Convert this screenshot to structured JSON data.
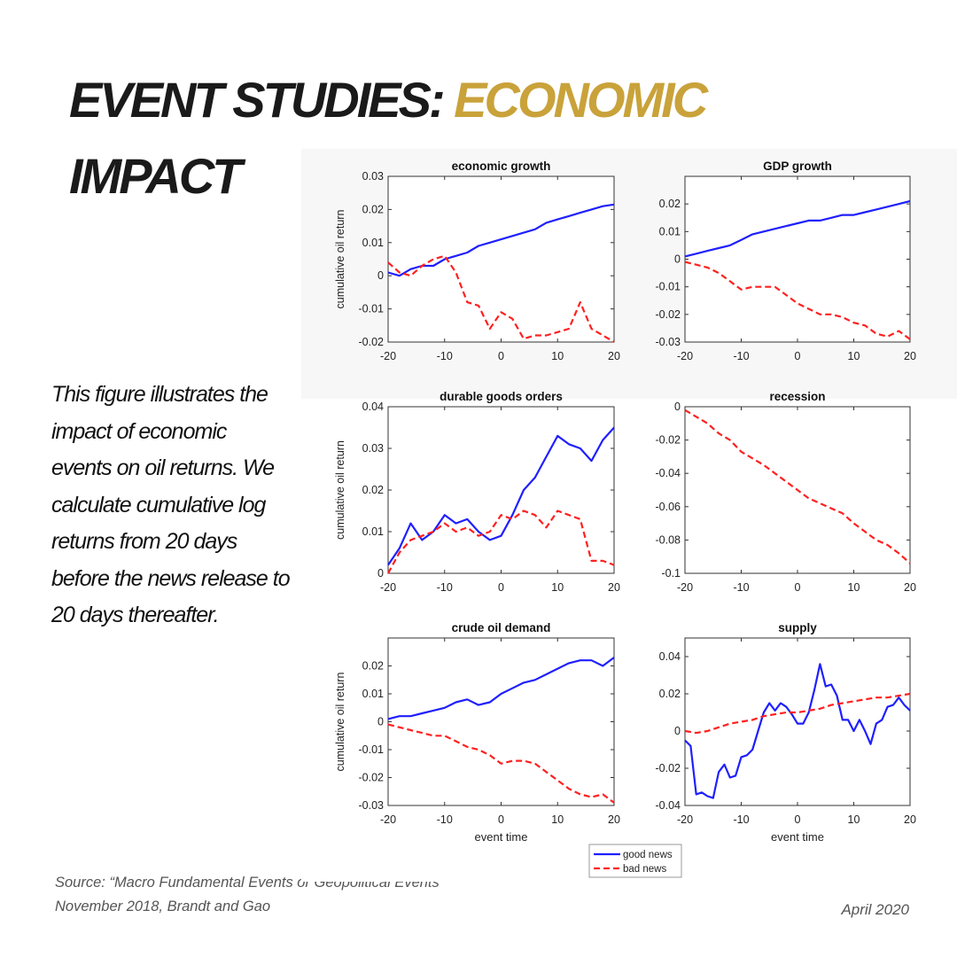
{
  "header": {
    "title_part1": "EVENT STUDIES: ",
    "title_part2": "ECONOMIC",
    "title_part3": "IMPACT",
    "accent_color": "#c9a23a",
    "text_color": "#1a1a1a"
  },
  "description": "This figure illustrates the impact of economic events on oil returns. We calculate cumulative log returns from 20 days before the news release to 20 days thereafter.",
  "source": {
    "line1": "Source: “Macro Fundamental Events or Geopolitical Events”",
    "line2": "November 2018, Brandt and Gao"
  },
  "date": "April 2020",
  "legend": {
    "good_label": "good news",
    "bad_label": "bad news",
    "good_color": "#1f1fff",
    "bad_color": "#ff2020"
  },
  "chart_data": [
    {
      "type": "line",
      "title": "economic growth",
      "ylabel": "cumulative oil return",
      "xlabel": "",
      "xlim": [
        -20,
        20
      ],
      "ylim": [
        -0.02,
        0.03
      ],
      "xticks": [
        "-20",
        "-10",
        "0",
        "10",
        "20"
      ],
      "yticks": [
        "-0.02",
        "-0.01",
        "0",
        "0.01",
        "0.02",
        "0.03"
      ],
      "series": [
        {
          "name": "good news",
          "style": "solid",
          "color": "#1f1fff",
          "x": [
            -20,
            -18,
            -16,
            -14,
            -12,
            -10,
            -8,
            -6,
            -4,
            -2,
            0,
            2,
            4,
            6,
            8,
            10,
            12,
            14,
            16,
            18,
            20
          ],
          "y": [
            0.001,
            0.0,
            0.002,
            0.003,
            0.003,
            0.005,
            0.006,
            0.007,
            0.009,
            0.01,
            0.011,
            0.012,
            0.013,
            0.014,
            0.016,
            0.017,
            0.018,
            0.019,
            0.02,
            0.021,
            0.0215
          ]
        },
        {
          "name": "bad news",
          "style": "dashed",
          "color": "#ff2020",
          "x": [
            -20,
            -18,
            -16,
            -14,
            -12,
            -10,
            -8,
            -6,
            -4,
            -2,
            0,
            2,
            4,
            6,
            8,
            10,
            12,
            14,
            16,
            18,
            20
          ],
          "y": [
            0.004,
            0.001,
            0.0,
            0.003,
            0.005,
            0.006,
            0.001,
            -0.008,
            -0.009,
            -0.016,
            -0.011,
            -0.013,
            -0.019,
            -0.018,
            -0.018,
            -0.017,
            -0.016,
            -0.008,
            -0.016,
            -0.018,
            -0.02
          ]
        }
      ]
    },
    {
      "type": "line",
      "title": "GDP growth",
      "ylabel": "",
      "xlabel": "",
      "xlim": [
        -20,
        20
      ],
      "ylim": [
        -0.03,
        0.03
      ],
      "xticks": [
        "-20",
        "-10",
        "0",
        "10",
        "20"
      ],
      "yticks": [
        "-0.03",
        "-0.02",
        "-0.01",
        "0",
        "0.01",
        "0.02"
      ],
      "series": [
        {
          "name": "good news",
          "style": "solid",
          "color": "#1f1fff",
          "x": [
            -20,
            -18,
            -16,
            -14,
            -12,
            -10,
            -8,
            -6,
            -4,
            -2,
            0,
            2,
            4,
            6,
            8,
            10,
            12,
            14,
            16,
            18,
            20
          ],
          "y": [
            0.001,
            0.002,
            0.003,
            0.004,
            0.005,
            0.007,
            0.009,
            0.01,
            0.011,
            0.012,
            0.013,
            0.014,
            0.014,
            0.015,
            0.016,
            0.016,
            0.017,
            0.018,
            0.019,
            0.02,
            0.021
          ]
        },
        {
          "name": "bad news",
          "style": "dashed",
          "color": "#ff2020",
          "x": [
            -20,
            -18,
            -16,
            -14,
            -12,
            -10,
            -8,
            -6,
            -4,
            -2,
            0,
            2,
            4,
            6,
            8,
            10,
            12,
            14,
            16,
            18,
            20
          ],
          "y": [
            -0.001,
            -0.002,
            -0.003,
            -0.005,
            -0.008,
            -0.011,
            -0.01,
            -0.01,
            -0.01,
            -0.013,
            -0.016,
            -0.018,
            -0.02,
            -0.02,
            -0.021,
            -0.023,
            -0.024,
            -0.027,
            -0.028,
            -0.026,
            -0.029
          ]
        }
      ]
    },
    {
      "type": "line",
      "title": "durable goods orders",
      "ylabel": "cumulative oil return",
      "xlabel": "",
      "xlim": [
        -20,
        20
      ],
      "ylim": [
        0,
        0.04
      ],
      "xticks": [
        "-20",
        "-10",
        "0",
        "10",
        "20"
      ],
      "yticks": [
        "0",
        "0.01",
        "0.02",
        "0.03",
        "0.04"
      ],
      "series": [
        {
          "name": "good news",
          "style": "solid",
          "color": "#1f1fff",
          "x": [
            -20,
            -18,
            -16,
            -14,
            -12,
            -10,
            -8,
            -6,
            -4,
            -2,
            0,
            2,
            4,
            6,
            8,
            10,
            12,
            14,
            16,
            18,
            20
          ],
          "y": [
            0.002,
            0.006,
            0.012,
            0.008,
            0.01,
            0.014,
            0.012,
            0.013,
            0.01,
            0.008,
            0.009,
            0.014,
            0.02,
            0.023,
            0.028,
            0.033,
            0.031,
            0.03,
            0.027,
            0.032,
            0.035
          ]
        },
        {
          "name": "bad news",
          "style": "dashed",
          "color": "#ff2020",
          "x": [
            -20,
            -18,
            -16,
            -14,
            -12,
            -10,
            -8,
            -6,
            -4,
            -2,
            0,
            2,
            4,
            6,
            8,
            10,
            12,
            14,
            16,
            18,
            20
          ],
          "y": [
            0.0,
            0.005,
            0.008,
            0.009,
            0.01,
            0.012,
            0.01,
            0.011,
            0.009,
            0.01,
            0.014,
            0.013,
            0.015,
            0.014,
            0.011,
            0.015,
            0.014,
            0.013,
            0.003,
            0.003,
            0.002
          ]
        }
      ]
    },
    {
      "type": "line",
      "title": "recession",
      "ylabel": "",
      "xlabel": "",
      "xlim": [
        -20,
        20
      ],
      "ylim": [
        -0.1,
        0
      ],
      "xticks": [
        "-20",
        "-10",
        "0",
        "10",
        "20"
      ],
      "yticks": [
        "-0.1",
        "-0.08",
        "-0.06",
        "-0.04",
        "-0.02",
        "0"
      ],
      "series": [
        {
          "name": "bad news",
          "style": "dashed",
          "color": "#ff2020",
          "x": [
            -20,
            -18,
            -16,
            -14,
            -12,
            -10,
            -8,
            -6,
            -4,
            -2,
            0,
            2,
            4,
            6,
            8,
            10,
            12,
            14,
            16,
            18,
            20
          ],
          "y": [
            -0.002,
            -0.006,
            -0.01,
            -0.016,
            -0.02,
            -0.027,
            -0.031,
            -0.035,
            -0.04,
            -0.045,
            -0.05,
            -0.055,
            -0.058,
            -0.061,
            -0.064,
            -0.07,
            -0.075,
            -0.08,
            -0.083,
            -0.088,
            -0.094
          ]
        }
      ]
    },
    {
      "type": "line",
      "title": "crude oil demand",
      "ylabel": "cumulative oil return",
      "xlabel": "event time",
      "xlim": [
        -20,
        20
      ],
      "ylim": [
        -0.03,
        0.03
      ],
      "xticks": [
        "-20",
        "-10",
        "0",
        "10",
        "20"
      ],
      "yticks": [
        "-0.03",
        "-0.02",
        "-0.01",
        "0",
        "0.01",
        "0.02"
      ],
      "series": [
        {
          "name": "good news",
          "style": "solid",
          "color": "#1f1fff",
          "x": [
            -20,
            -18,
            -16,
            -14,
            -12,
            -10,
            -8,
            -6,
            -4,
            -2,
            0,
            2,
            4,
            6,
            8,
            10,
            12,
            14,
            16,
            18,
            20
          ],
          "y": [
            0.001,
            0.002,
            0.002,
            0.003,
            0.004,
            0.005,
            0.007,
            0.008,
            0.006,
            0.007,
            0.01,
            0.012,
            0.014,
            0.015,
            0.017,
            0.019,
            0.021,
            0.022,
            0.022,
            0.02,
            0.023
          ]
        },
        {
          "name": "bad news",
          "style": "dashed",
          "color": "#ff2020",
          "x": [
            -20,
            -18,
            -16,
            -14,
            -12,
            -10,
            -8,
            -6,
            -4,
            -2,
            0,
            2,
            4,
            6,
            8,
            10,
            12,
            14,
            16,
            18,
            20
          ],
          "y": [
            -0.001,
            -0.002,
            -0.003,
            -0.004,
            -0.005,
            -0.005,
            -0.007,
            -0.009,
            -0.01,
            -0.012,
            -0.015,
            -0.014,
            -0.014,
            -0.015,
            -0.018,
            -0.021,
            -0.024,
            -0.026,
            -0.027,
            -0.026,
            -0.029
          ]
        }
      ]
    },
    {
      "type": "line",
      "title": "supply",
      "ylabel": "",
      "xlabel": "event time",
      "xlim": [
        -20,
        20
      ],
      "ylim": [
        -0.04,
        0.05
      ],
      "xticks": [
        "-20",
        "-10",
        "0",
        "10",
        "20"
      ],
      "yticks": [
        "-0.04",
        "-0.02",
        "0",
        "0.02",
        "0.04"
      ],
      "series": [
        {
          "name": "good news",
          "style": "solid",
          "color": "#1f1fff",
          "x": [
            -20,
            -19,
            -18,
            -17,
            -16,
            -15,
            -14,
            -13,
            -12,
            -11,
            -10,
            -9,
            -8,
            -7,
            -6,
            -5,
            -4,
            -3,
            -2,
            -1,
            0,
            1,
            2,
            3,
            4,
            5,
            6,
            7,
            8,
            9,
            10,
            11,
            12,
            13,
            14,
            15,
            16,
            17,
            18,
            19,
            20
          ],
          "y": [
            -0.005,
            -0.008,
            -0.034,
            -0.033,
            -0.035,
            -0.036,
            -0.022,
            -0.018,
            -0.025,
            -0.024,
            -0.014,
            -0.013,
            -0.01,
            0.0,
            0.01,
            0.015,
            0.011,
            0.015,
            0.013,
            0.009,
            0.004,
            0.004,
            0.01,
            0.022,
            0.036,
            0.024,
            0.025,
            0.019,
            0.006,
            0.006,
            0.0,
            0.006,
            0.0,
            -0.007,
            0.004,
            0.006,
            0.013,
            0.014,
            0.018,
            0.014,
            0.011
          ]
        },
        {
          "name": "bad news",
          "style": "dashed",
          "color": "#ff2020",
          "x": [
            -20,
            -18,
            -16,
            -14,
            -12,
            -10,
            -8,
            -6,
            -4,
            -2,
            0,
            2,
            4,
            6,
            8,
            10,
            12,
            14,
            16,
            18,
            20
          ],
          "y": [
            0.0,
            -0.001,
            0.0,
            0.002,
            0.004,
            0.005,
            0.006,
            0.008,
            0.009,
            0.01,
            0.01,
            0.011,
            0.012,
            0.014,
            0.015,
            0.016,
            0.017,
            0.018,
            0.018,
            0.019,
            0.02
          ]
        }
      ]
    }
  ]
}
